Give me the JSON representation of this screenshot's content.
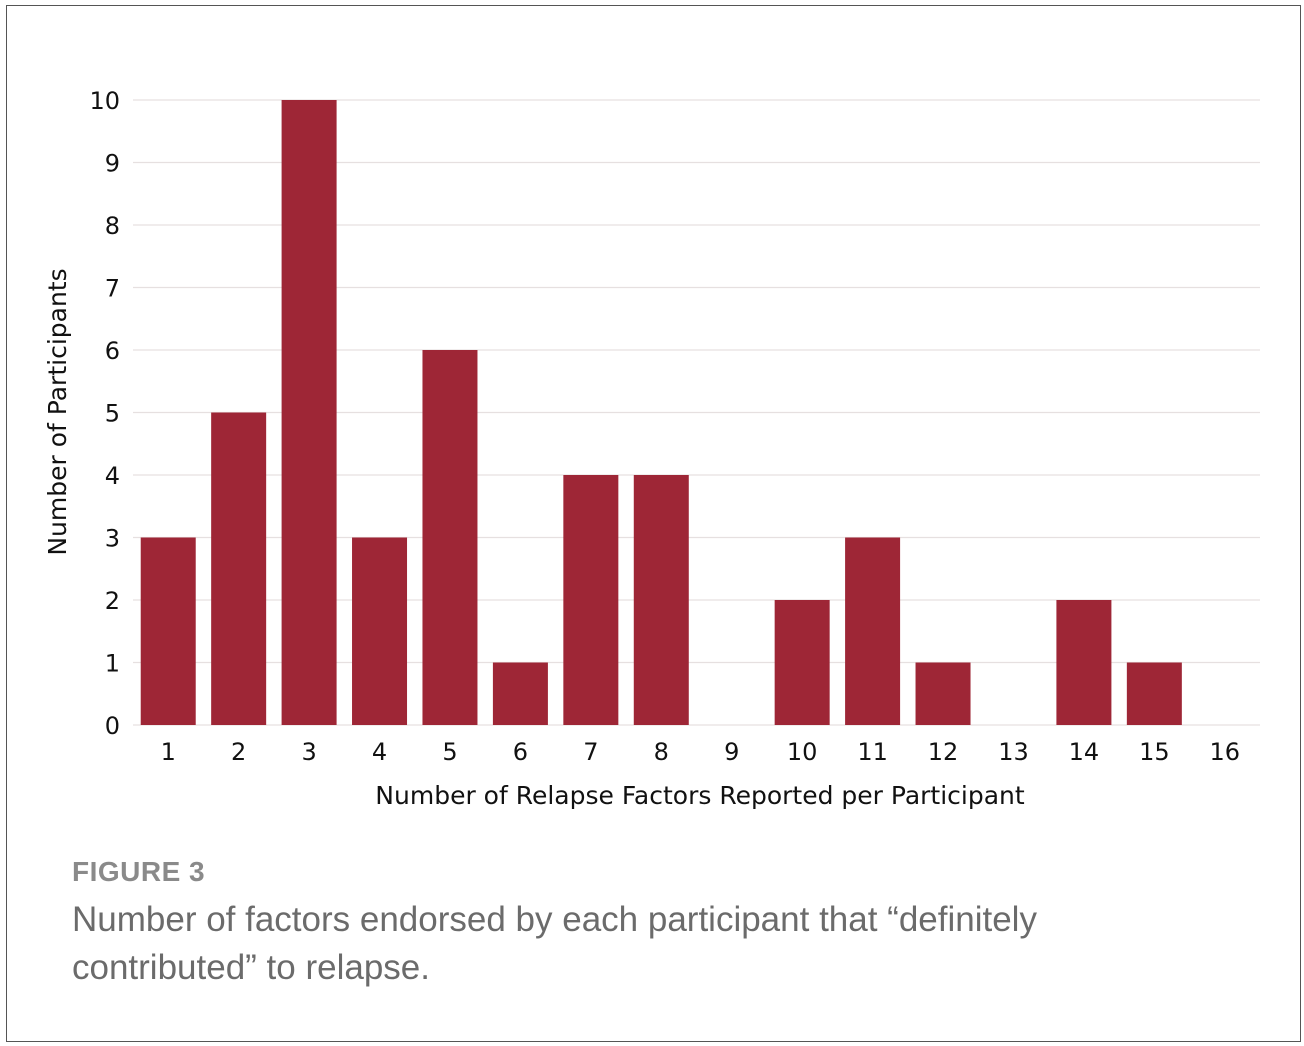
{
  "chart_data": {
    "type": "bar",
    "title": "",
    "xlabel": "Number of Relapse Factors Reported per Participant",
    "ylabel": "Number of Participants",
    "categories": [
      "1",
      "2",
      "3",
      "4",
      "5",
      "6",
      "7",
      "8",
      "9",
      "10",
      "11",
      "12",
      "13",
      "14",
      "15",
      "16"
    ],
    "values": [
      3,
      5,
      10,
      3,
      6,
      1,
      4,
      4,
      0,
      2,
      3,
      1,
      0,
      2,
      1,
      0
    ],
    "ylim": [
      0,
      10
    ],
    "yticks": [
      0,
      1,
      2,
      3,
      4,
      5,
      6,
      7,
      8,
      9,
      10
    ],
    "grid": true,
    "bar_color": "#9e2636",
    "grid_color": "#e6e0e0"
  },
  "figure": {
    "label": "FIGURE 3",
    "caption": "Number of factors endorsed by each participant that “definitely contributed” to relapse."
  }
}
